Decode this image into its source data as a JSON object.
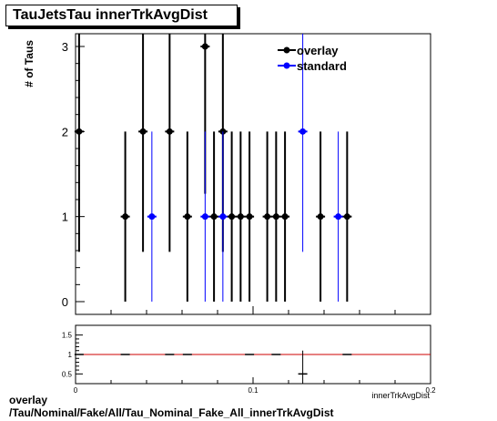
{
  "title": "TauJetsTau innerTrkAvgDist",
  "caption_line1": "overlay",
  "caption_line2": "/Tau/Nominal/Fake/All/Tau_Nominal_Fake_All_innerTrkAvgDist",
  "chart_data": [
    {
      "type": "scatter",
      "title": "TauJetsTau innerTrkAvgDist",
      "ylabel": "# of Taus",
      "xlim": [
        0,
        0.2
      ],
      "ylim": [
        -0.15,
        3.15
      ],
      "yticks": [
        0,
        1,
        2,
        3
      ],
      "legend_position": "top-right",
      "colors": {
        "overlay": "#000000",
        "standard": "#0000ff"
      },
      "series": [
        {
          "name": "overlay",
          "points": [
            {
              "x": 0.002,
              "y": 2
            },
            {
              "x": 0.028,
              "y": 1
            },
            {
              "x": 0.038,
              "y": 2
            },
            {
              "x": 0.053,
              "y": 2
            },
            {
              "x": 0.063,
              "y": 1
            },
            {
              "x": 0.073,
              "y": 3
            },
            {
              "x": 0.078,
              "y": 1
            },
            {
              "x": 0.083,
              "y": 2
            },
            {
              "x": 0.088,
              "y": 1
            },
            {
              "x": 0.093,
              "y": 1
            },
            {
              "x": 0.098,
              "y": 1
            },
            {
              "x": 0.108,
              "y": 1
            },
            {
              "x": 0.113,
              "y": 1
            },
            {
              "x": 0.118,
              "y": 1
            },
            {
              "x": 0.138,
              "y": 1
            },
            {
              "x": 0.153,
              "y": 1
            }
          ]
        },
        {
          "name": "standard",
          "points": [
            {
              "x": 0.043,
              "y": 1
            },
            {
              "x": 0.073,
              "y": 1
            },
            {
              "x": 0.083,
              "y": 1
            },
            {
              "x": 0.128,
              "y": 2
            },
            {
              "x": 0.148,
              "y": 1
            }
          ]
        }
      ]
    },
    {
      "type": "scatter",
      "xlabel": "innerTrkAvgDist",
      "xlim": [
        0,
        0.2
      ],
      "ylim": [
        0.25,
        1.75
      ],
      "xticks": [
        0,
        0.1,
        0.2
      ],
      "yticks": [
        0.5,
        1,
        1.5
      ],
      "reference_line": {
        "y": 1,
        "color": "#cc0000"
      },
      "series": [
        {
          "name": "ratio",
          "points": [
            {
              "x": 0.002,
              "y": 1,
              "err": 0
            },
            {
              "x": 0.028,
              "y": 1,
              "err": 0
            },
            {
              "x": 0.053,
              "y": 1,
              "err": 0
            },
            {
              "x": 0.063,
              "y": 1,
              "err": 0
            },
            {
              "x": 0.098,
              "y": 1,
              "err": 0
            },
            {
              "x": 0.113,
              "y": 1,
              "err": 0
            },
            {
              "x": 0.128,
              "y": 0.5,
              "err": 0.6
            },
            {
              "x": 0.153,
              "y": 1,
              "err": 0
            }
          ]
        }
      ]
    }
  ]
}
